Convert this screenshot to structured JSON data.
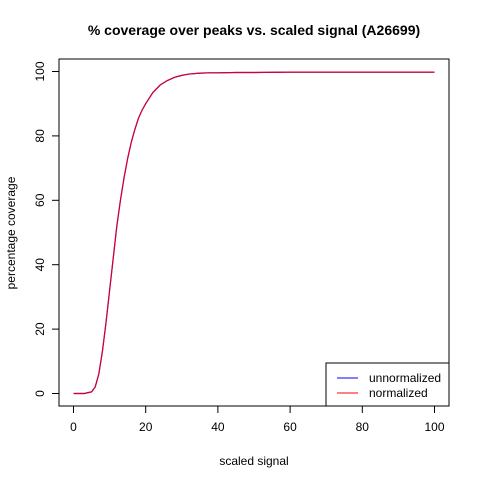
{
  "chart_data": {
    "type": "line",
    "title": "% coverage over peaks vs. scaled signal (A26699)",
    "xlabel": "scaled signal",
    "ylabel": "percentage coverage",
    "xlim": [
      0,
      100
    ],
    "ylim": [
      0,
      100
    ],
    "x_ticks": [
      0,
      20,
      40,
      60,
      80,
      100
    ],
    "y_ticks": [
      0,
      20,
      40,
      60,
      80,
      100
    ],
    "legend_position": "bottom-right",
    "series": [
      {
        "name": "unnormalized",
        "color": "#0000ff",
        "x": [
          0,
          3,
          5,
          6,
          7,
          8,
          9,
          10,
          11,
          12,
          13,
          14,
          15,
          16,
          17,
          18,
          19,
          20,
          22,
          24,
          26,
          28,
          30,
          32,
          35,
          38,
          40,
          45,
          50,
          60,
          70,
          80,
          90,
          100
        ],
        "y": [
          0,
          0,
          0.5,
          2,
          6,
          13,
          22,
          32,
          42,
          52,
          60,
          67,
          73,
          78,
          82,
          85.5,
          88,
          90,
          93.5,
          95.8,
          97.2,
          98.2,
          98.8,
          99.2,
          99.5,
          99.6,
          99.6,
          99.7,
          99.7,
          99.8,
          99.8,
          99.8,
          99.8,
          99.8
        ]
      },
      {
        "name": "normalized",
        "color": "#ff0000",
        "x": [
          0,
          3,
          5,
          6,
          7,
          8,
          9,
          10,
          11,
          12,
          13,
          14,
          15,
          16,
          17,
          18,
          19,
          20,
          22,
          24,
          26,
          28,
          30,
          32,
          35,
          38,
          40,
          45,
          50,
          60,
          70,
          80,
          90,
          100
        ],
        "y": [
          0,
          0,
          0.5,
          2,
          6,
          13,
          22,
          32,
          42,
          52,
          60,
          67,
          73,
          78,
          82,
          85.5,
          88,
          90,
          93.5,
          95.8,
          97.2,
          98.2,
          98.8,
          99.2,
          99.5,
          99.6,
          99.6,
          99.7,
          99.7,
          99.8,
          99.8,
          99.8,
          99.8,
          99.8
        ]
      }
    ]
  }
}
